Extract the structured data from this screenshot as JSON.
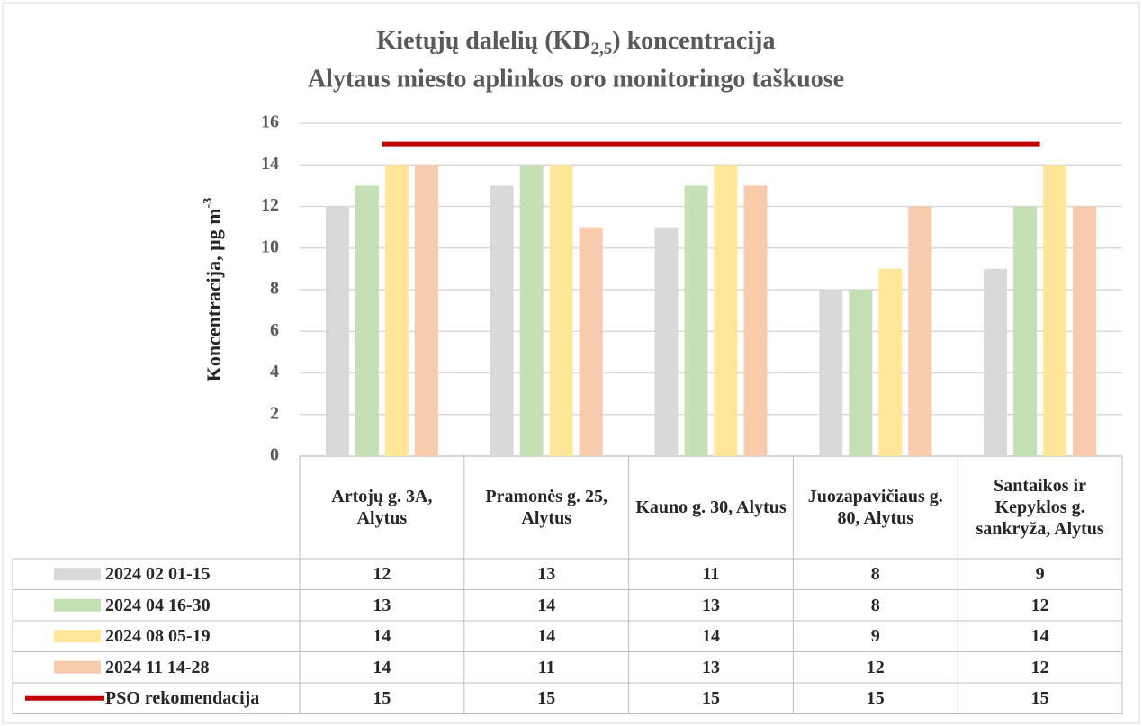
{
  "chart_data": {
    "type": "bar",
    "title": [
      "Kietųjų dalelių (KD",
      "2,5",
      ") koncentracija"
    ],
    "subtitle": "Alytaus miesto aplinkos oro monitoringo taškuose",
    "ylabel": [
      "Koncentracija, µg m",
      "-3"
    ],
    "categories": [
      "Artojų g. 3A, Alytus",
      "Pramonės g. 25, Alytus",
      "Kauno g. 30, Alytus",
      "Juozapavičiaus g. 80, Alytus",
      "Santaikos ir Kepyklos g. sankryža, Alytus"
    ],
    "series": [
      {
        "name": "2024 02 01-15",
        "color": "#d9d9d9",
        "values": [
          12,
          13,
          11,
          8,
          9
        ]
      },
      {
        "name": "2024 04 16-30",
        "color": "#c5e0b4",
        "values": [
          13,
          14,
          13,
          8,
          12
        ]
      },
      {
        "name": "2024 08 05-19",
        "color": "#ffe699",
        "values": [
          14,
          14,
          14,
          9,
          14
        ]
      },
      {
        "name": "2024 11 14-28",
        "color": "#f8cbad",
        "values": [
          14,
          11,
          13,
          12,
          12
        ]
      },
      {
        "name": "PSO rekomendacija",
        "color": "#c00000",
        "type": "line",
        "values": [
          15,
          15,
          15,
          15,
          15
        ]
      }
    ],
    "ylim": [
      0,
      16
    ],
    "yticks": [
      0,
      2,
      4,
      6,
      8,
      10,
      12,
      14,
      16
    ],
    "grid": true
  }
}
